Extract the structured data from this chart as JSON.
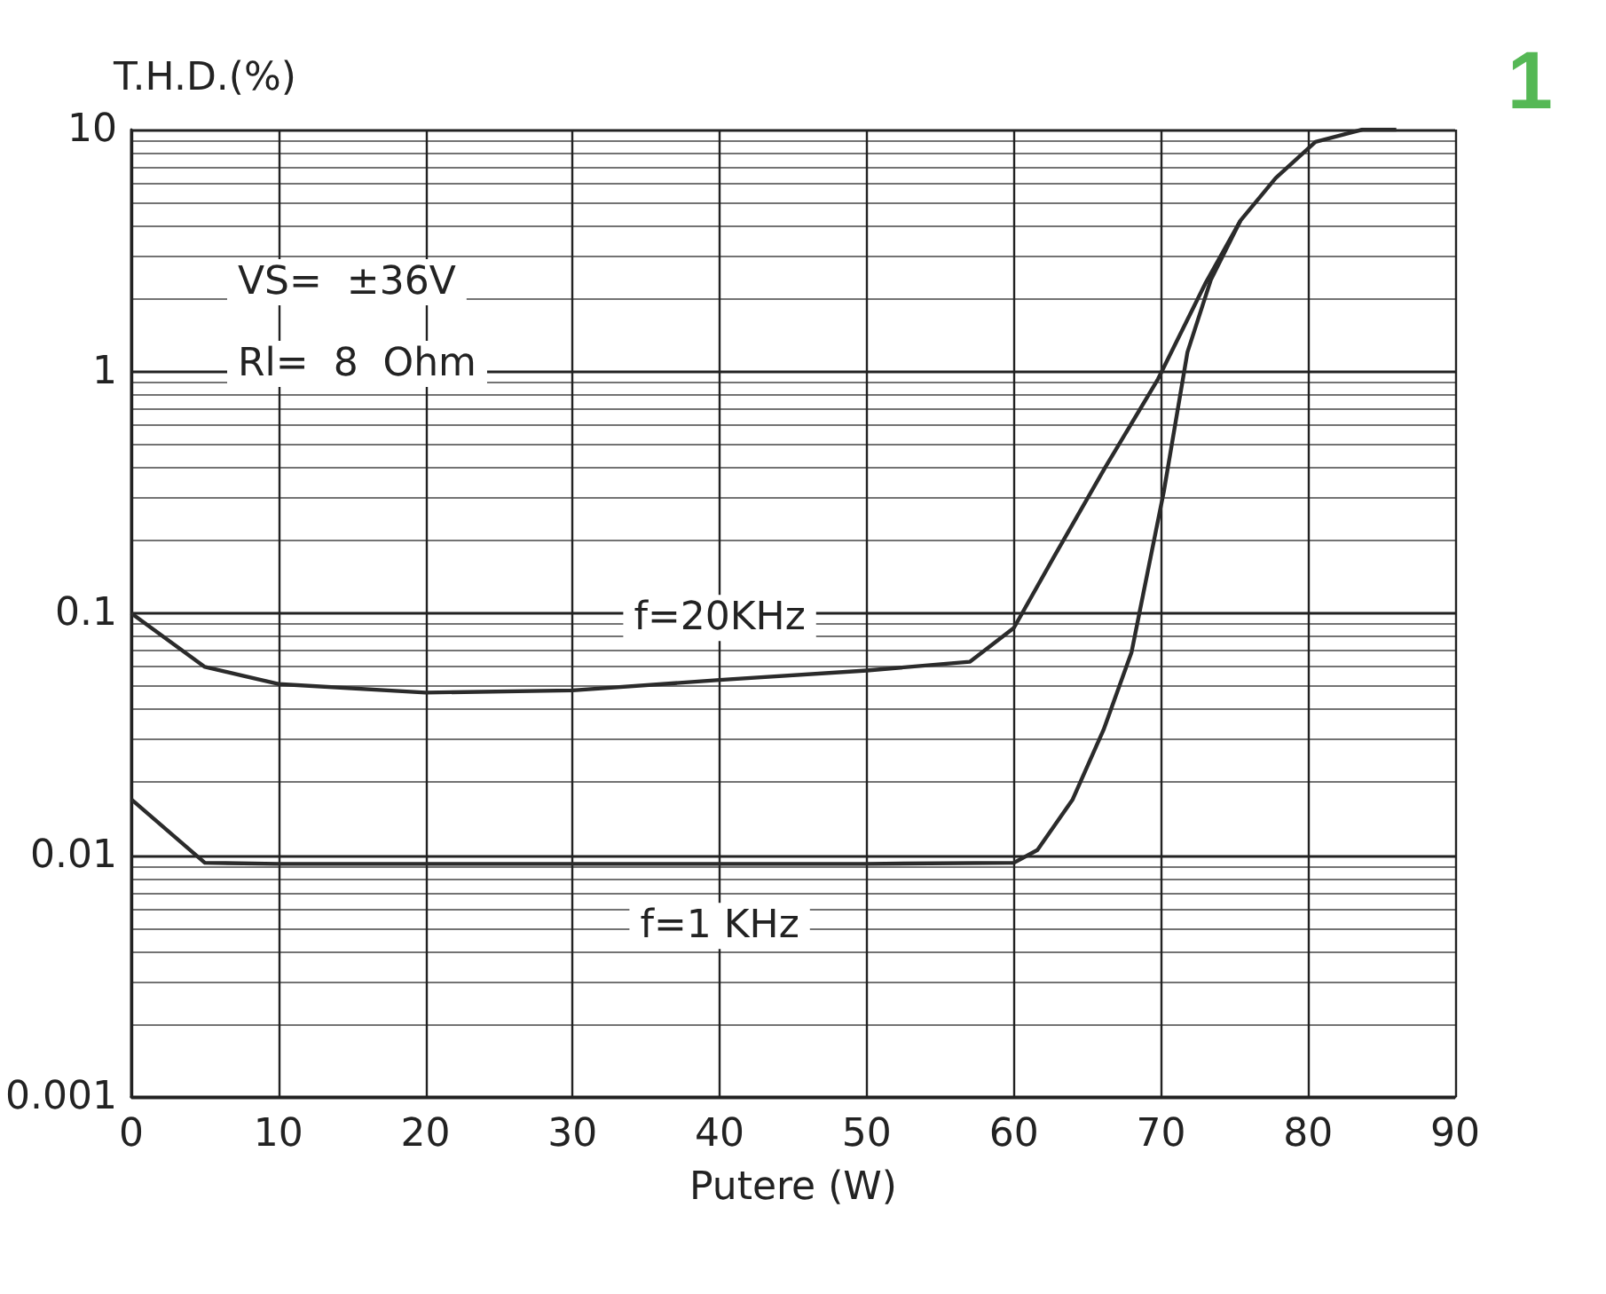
{
  "chart_data": {
    "type": "line",
    "xlabel": "Putere (W)",
    "ylabel": "T.H.D.(%)",
    "xlim": [
      0,
      90
    ],
    "xticks": [
      0,
      10,
      20,
      30,
      40,
      50,
      60,
      70,
      80,
      90
    ],
    "ylim": [
      0.001,
      10
    ],
    "yticks": [
      0.001,
      0.01,
      0.1,
      1,
      10
    ],
    "log": "y",
    "grid": true,
    "marker": "none",
    "line_style": "solid",
    "series": [
      {
        "name": "f=20KHz",
        "color": "#2b2b2b",
        "x": [
          0,
          5,
          10,
          20,
          30,
          40,
          50,
          57,
          60,
          62.7,
          66.2,
          69.8,
          73,
          75.4,
          77.8,
          80.5,
          83.7,
          86
        ],
        "values": [
          0.1,
          0.06,
          0.051,
          0.047,
          0.048,
          0.053,
          0.058,
          0.063,
          0.087,
          0.17,
          0.4,
          0.93,
          2.3,
          4.2,
          6.3,
          8.9,
          10,
          10
        ]
      },
      {
        "name": "f=1 KHz",
        "color": "#2b2b2b",
        "x": [
          0,
          5,
          10,
          20,
          30,
          40,
          50,
          60,
          61.6,
          64,
          66.1,
          68,
          68.6,
          70.2,
          71.8,
          73.4,
          75.4
        ],
        "values": [
          0.017,
          0.0093,
          0.0092,
          0.0092,
          0.0092,
          0.0092,
          0.0092,
          0.0093,
          0.0105,
          0.017,
          0.033,
          0.069,
          0.105,
          0.32,
          1.2,
          2.4,
          4.2
        ]
      }
    ],
    "annotations": [
      "VS=  ±36V",
      "Rl=  8  Ohm",
      "1"
    ]
  }
}
